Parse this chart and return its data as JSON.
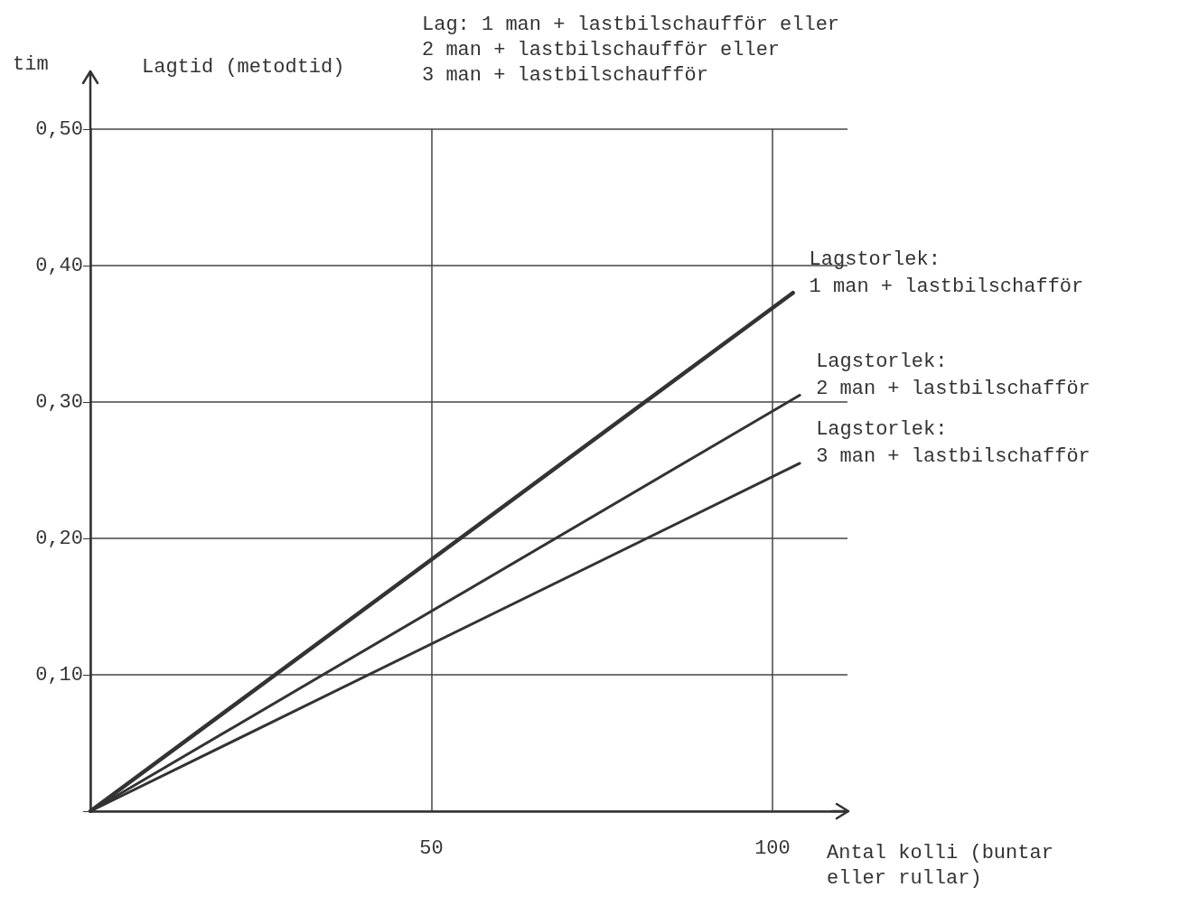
{
  "chart_data": {
    "type": "line",
    "title": "Lagtid (metodtid)",
    "subtitle": "Lag: 1 man + lastbilschaufför eller\n2 man + lastbilschaufför eller\n3 man + lastbilschaufför",
    "xlabel": "Antal kolli (buntar\neller rullar)",
    "ylabel": "tim",
    "xlim": [
      0,
      111
    ],
    "ylim": [
      0,
      0.5
    ],
    "xticks": [
      {
        "value": 0,
        "label": null
      },
      50,
      100
    ],
    "yticks": [
      {
        "value": 0,
        "label": null
      },
      {
        "value": 0.1,
        "label": "0,10"
      },
      {
        "value": 0.2,
        "label": "0,20"
      },
      {
        "value": 0.3,
        "label": "0,30"
      },
      {
        "value": 0.4,
        "label": "0,40"
      },
      {
        "value": 0.5,
        "label": "0,50"
      }
    ],
    "grid": true,
    "marker": "none",
    "line_style": "solid",
    "legend": false,
    "series": [
      {
        "name": "Lagstorlek:\n1 man + lastbilschafför",
        "color": "#333333",
        "x": [
          0,
          103
        ],
        "values": [
          0,
          0.38
        ]
      },
      {
        "name": "Lagstorlek:\n2 man + lastbilschafför",
        "color": "#333333",
        "x": [
          0,
          104
        ],
        "values": [
          0,
          0.305
        ]
      },
      {
        "name": "Lagstorlek:\n3 man + lastbilschafför",
        "color": "#333333",
        "x": [
          0,
          104
        ],
        "values": [
          0,
          0.255
        ]
      }
    ]
  }
}
